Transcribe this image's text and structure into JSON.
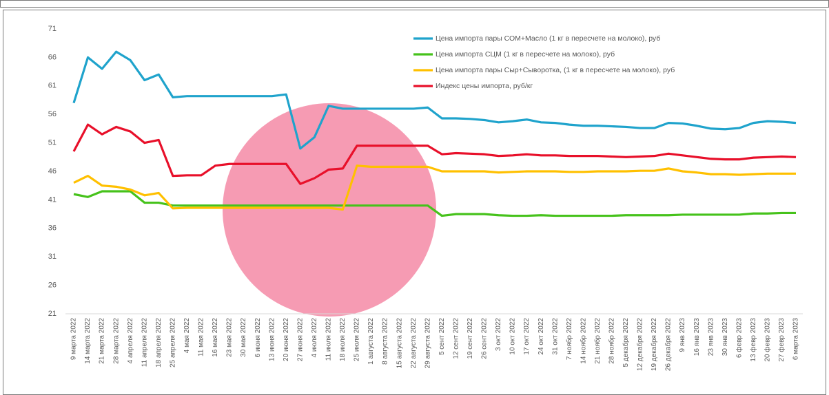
{
  "chart_data": {
    "type": "line",
    "categories": [
      "9 марта 2022",
      "14 марта 2022",
      "21 марта 2022",
      "28 марта 2022",
      "4 апреля 2022",
      "11 апреля 2022",
      "18 апреля 2022",
      "25 апреля 2022",
      "4 мая 2022",
      "11 мая 2022",
      "16 мая 2022",
      "23 мая 2022",
      "30 мая 2022",
      "6 июня 2022",
      "13 июня 2022",
      "20 июня 2022",
      "27 июня 2022",
      "4 июля 2022",
      "11 июля 2022",
      "18 июля 2022",
      "25 июля 2022",
      "1 августа 2022",
      "8 августа 2022",
      "15 августа 2022",
      "22 августа 2022",
      "29 августа 2022",
      "5 сент 2022",
      "12 сент 2022",
      "19 сент 2022",
      "26 сент 2022",
      "3 окт 2022",
      "10 окт 2022",
      "17 окт 2022",
      "24 окт 2022",
      "31 окт 2022",
      "7 ноябр 2022",
      "14 ноябр 2022",
      "21 ноябр 2022",
      "28 ноябр 2022",
      "5 декабря 2022",
      "12 декабря 2022",
      "19 декабря 2022",
      "26 декабря 2022",
      "9 янв 2023",
      "16 янв 2023",
      "23 янв 2023",
      "30 янв 2023",
      "6 февр 2023",
      "13 февр 2023",
      "20 февр 2023",
      "27 февр 2023",
      "6 марта 2023"
    ],
    "series": [
      {
        "name": "Цена импорта пары СОМ+Масло (1 кг в пересчете на молоко), руб",
        "color": "#1fa3cc",
        "values": [
          58,
          66,
          64,
          67,
          65.5,
          62,
          63,
          59,
          59.2,
          59.2,
          59.2,
          59.2,
          59.2,
          59.2,
          59.2,
          59.5,
          50,
          52,
          57.5,
          57,
          57,
          57,
          57,
          57,
          57,
          57.2,
          55.3,
          55.3,
          55.2,
          55,
          54.6,
          54.8,
          55.1,
          54.6,
          54.5,
          54.2,
          54,
          54,
          53.9,
          53.8,
          53.6,
          53.6,
          54.5,
          54.4,
          54,
          53.5,
          53.4,
          53.6,
          54.5,
          54.8,
          54.7,
          54.5
        ]
      },
      {
        "name": "Цена импорта СЦМ (1 кг в пересчете на молоко), руб",
        "color": "#46c21b",
        "values": [
          42,
          41.5,
          42.5,
          42.5,
          42.5,
          40.5,
          40.5,
          40,
          40,
          40,
          40,
          40,
          40,
          40,
          40,
          40,
          40,
          40,
          40,
          40,
          40,
          40,
          40,
          40,
          40,
          40,
          38.2,
          38.5,
          38.5,
          38.5,
          38.3,
          38.2,
          38.2,
          38.3,
          38.2,
          38.2,
          38.2,
          38.2,
          38.2,
          38.3,
          38.3,
          38.3,
          38.3,
          38.4,
          38.4,
          38.4,
          38.4,
          38.4,
          38.6,
          38.6,
          38.7,
          38.7
        ]
      },
      {
        "name": "Цена импорта пары Сыр+Сыворотка, (1 кг в пересчете на молоко), руб",
        "color": "#ffc000",
        "values": [
          44,
          45.2,
          43.5,
          43.3,
          42.8,
          41.8,
          42.2,
          39.5,
          39.6,
          39.6,
          39.6,
          39.6,
          39.6,
          39.6,
          39.6,
          39.6,
          39.6,
          39.6,
          39.6,
          39.3,
          47,
          46.8,
          46.8,
          46.8,
          46.8,
          46.8,
          46,
          46,
          46,
          46,
          45.8,
          45.9,
          46,
          46,
          46,
          45.9,
          45.9,
          46,
          46,
          46,
          46.1,
          46.1,
          46.5,
          46,
          45.8,
          45.5,
          45.5,
          45.4,
          45.5,
          45.6,
          45.6,
          45.6
        ]
      },
      {
        "name": "Индекс цены импорта, руб/кг",
        "color": "#e8102a",
        "values": [
          49.5,
          54.2,
          52.5,
          53.8,
          53,
          51,
          51.5,
          45.2,
          45.3,
          45.3,
          47,
          47.3,
          47.3,
          47.3,
          47.3,
          47.3,
          43.8,
          44.8,
          46.3,
          46.5,
          50.5,
          50.5,
          50.5,
          50.5,
          50.5,
          50.5,
          49,
          49.2,
          49.1,
          49,
          48.7,
          48.8,
          49,
          48.8,
          48.8,
          48.7,
          48.7,
          48.7,
          48.6,
          48.5,
          48.6,
          48.7,
          49.1,
          48.8,
          48.5,
          48.2,
          48.1,
          48.1,
          48.4,
          48.5,
          48.6,
          48.5
        ]
      }
    ],
    "ylim": [
      21,
      71
    ],
    "yticks": [
      21,
      26,
      31,
      36,
      41,
      46,
      51,
      56,
      61,
      66,
      71
    ],
    "grid": false,
    "legend": "top-right"
  }
}
